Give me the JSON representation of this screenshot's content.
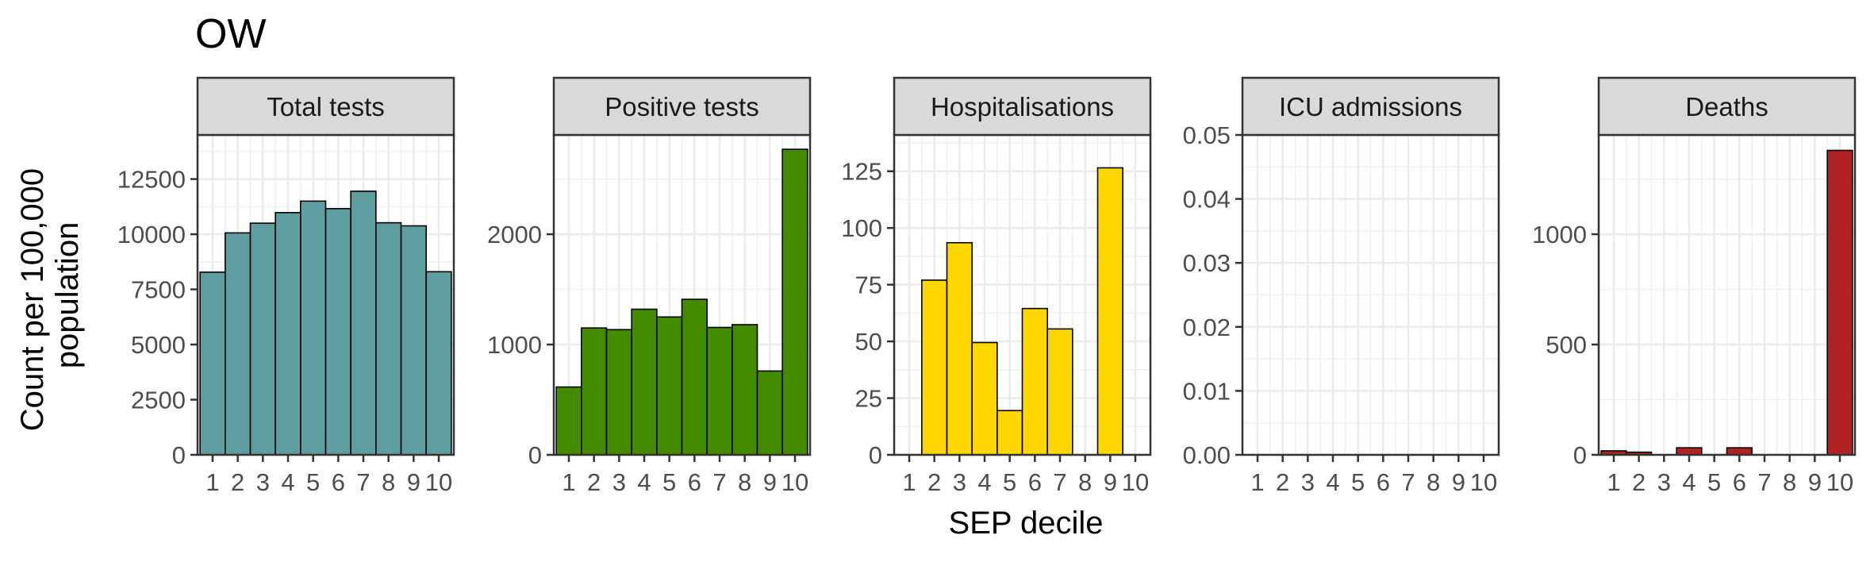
{
  "title": "OW",
  "ylabel": "Count per 100,000 population",
  "ylabel_lines": [
    "Count per 100,000",
    "population"
  ],
  "xlabel": "SEP decile",
  "chart_data": [
    {
      "type": "bar",
      "title": "Total tests",
      "categories": [
        "1",
        "2",
        "3",
        "4",
        "5",
        "6",
        "7",
        "8",
        "9",
        "10"
      ],
      "values": [
        8280,
        10060,
        10500,
        10980,
        11500,
        11160,
        11950,
        10520,
        10380,
        8300
      ],
      "ylim": [
        0,
        14500
      ],
      "yticks": [
        0,
        2500,
        5000,
        7500,
        10000,
        12500
      ],
      "ytick_labels": [
        "0",
        "2500",
        "5000",
        "7500",
        "10000",
        "12500"
      ],
      "color": "#5f9ea0",
      "grid": true
    },
    {
      "type": "bar",
      "title": "Positive tests",
      "categories": [
        "1",
        "2",
        "3",
        "4",
        "5",
        "6",
        "7",
        "8",
        "9",
        "10"
      ],
      "values": [
        615,
        1150,
        1135,
        1320,
        1250,
        1410,
        1155,
        1180,
        760,
        2770
      ],
      "ylim": [
        0,
        2900
      ],
      "yticks": [
        0,
        1000,
        2000
      ],
      "ytick_labels": [
        "0",
        "1000",
        "2000"
      ],
      "color": "#458b00",
      "grid": true
    },
    {
      "type": "bar",
      "title": "Hospitalisations",
      "categories": [
        "1",
        "2",
        "3",
        "4",
        "5",
        "6",
        "7",
        "8",
        "9",
        "10"
      ],
      "values": [
        0,
        77,
        93.5,
        49.5,
        19.5,
        64.5,
        55.5,
        0,
        126.5,
        0
      ],
      "ylim": [
        0,
        141
      ],
      "yticks": [
        0,
        25,
        50,
        75,
        100,
        125
      ],
      "ytick_labels": [
        "0",
        "25",
        "50",
        "75",
        "100",
        "125"
      ],
      "color": "#ffd700",
      "grid": true
    },
    {
      "type": "bar",
      "title": "ICU admissions",
      "categories": [
        "1",
        "2",
        "3",
        "4",
        "5",
        "6",
        "7",
        "8",
        "9",
        "10"
      ],
      "values": [
        0,
        0,
        0,
        0,
        0,
        0,
        0,
        0,
        0,
        0
      ],
      "ylim": [
        0,
        0.05
      ],
      "yticks": [
        0,
        0.01,
        0.02,
        0.03,
        0.04,
        0.05
      ],
      "ytick_labels": [
        "0.00",
        "0.01",
        "0.02",
        "0.03",
        "0.04",
        "0.05"
      ],
      "color": "#cd2626",
      "grid": true
    },
    {
      "type": "bar",
      "title": "Deaths",
      "categories": [
        "1",
        "2",
        "3",
        "4",
        "5",
        "6",
        "7",
        "8",
        "9",
        "10"
      ],
      "values": [
        18,
        12,
        0,
        32,
        0,
        32,
        0,
        0,
        0,
        1380
      ],
      "ylim": [
        0,
        1450
      ],
      "yticks": [
        0,
        500,
        1000
      ],
      "ytick_labels": [
        "0",
        "500",
        "1000"
      ],
      "color": "#b22222",
      "grid": true
    }
  ]
}
